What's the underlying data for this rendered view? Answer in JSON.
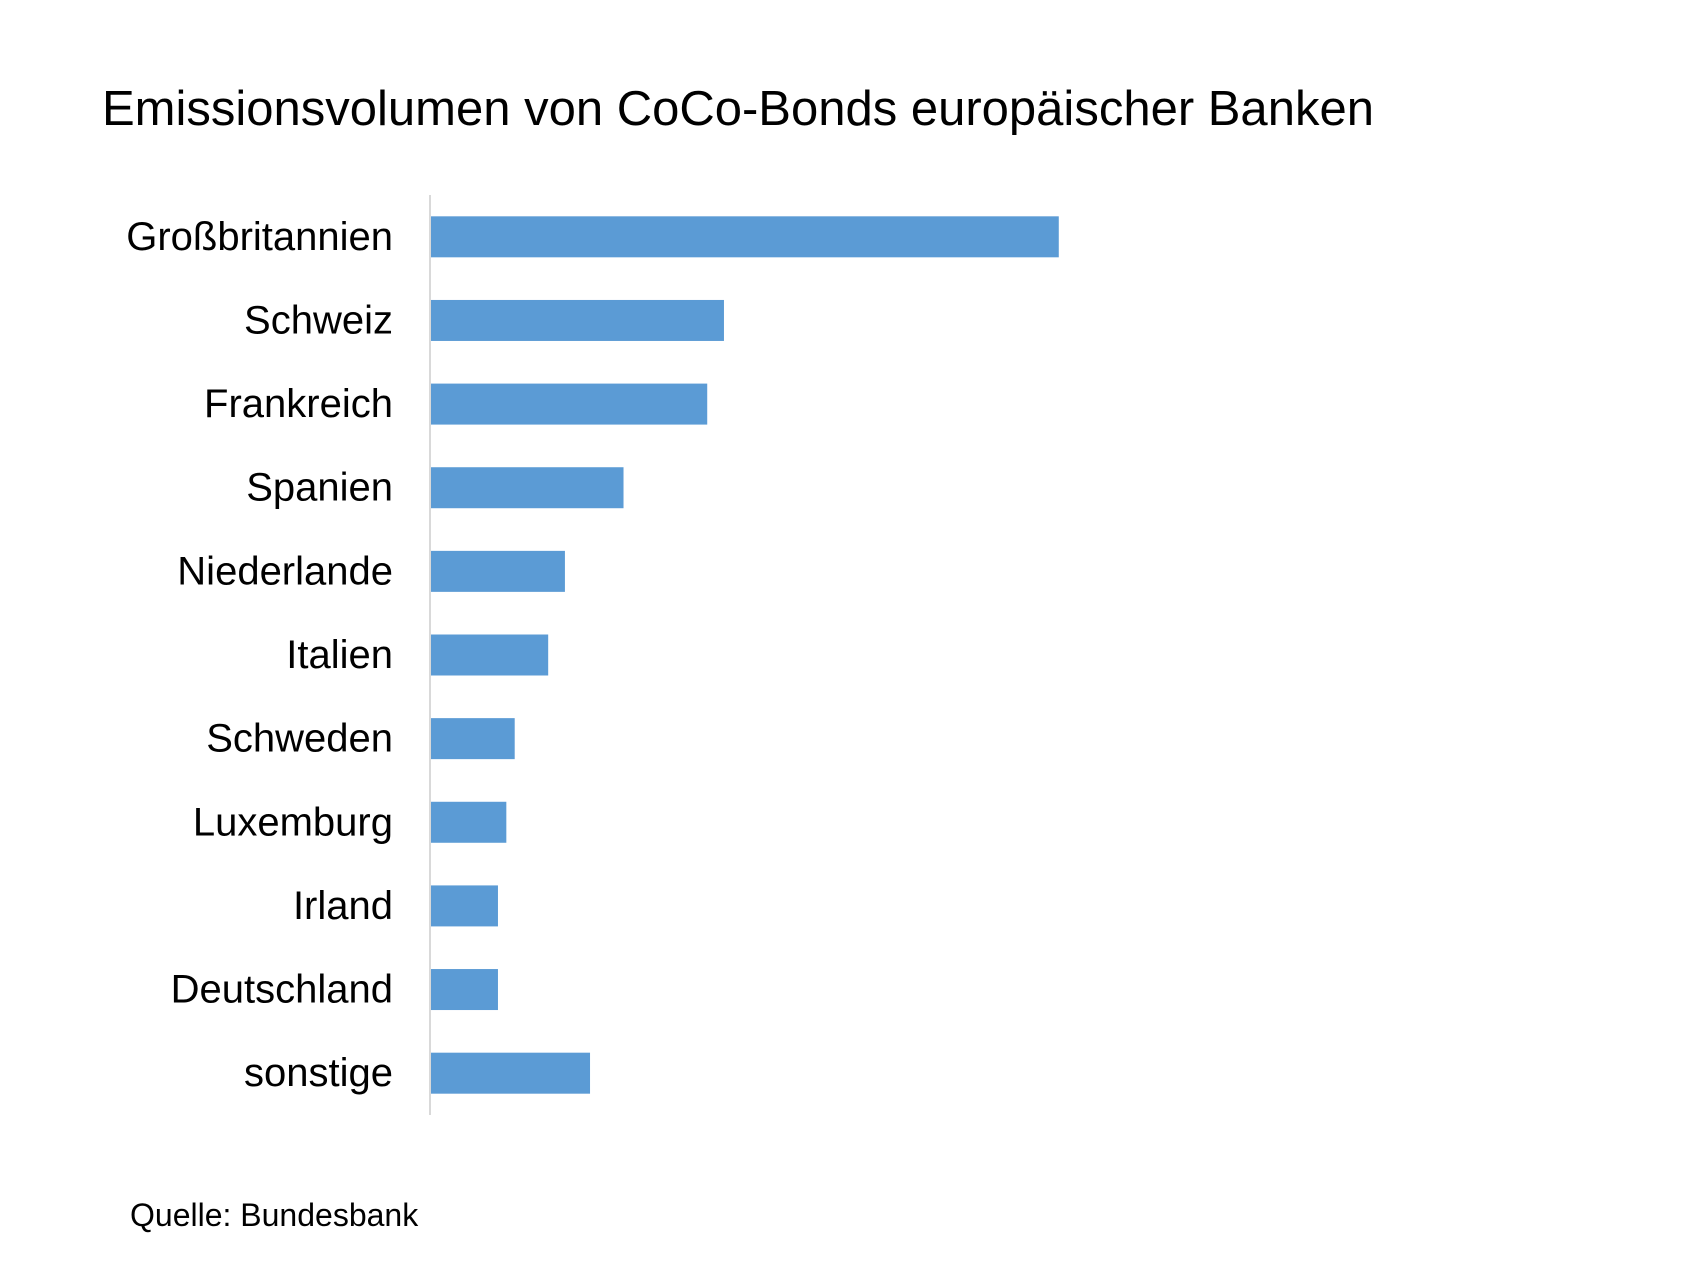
{
  "chart_data": {
    "type": "bar",
    "orientation": "horizontal",
    "title": "Emissionsvolumen von CoCo-Bonds europäischer Banken",
    "categories": [
      "Großbritannien",
      "Schweiz",
      "Frankreich",
      "Spanien",
      "Niederlande",
      "Italien",
      "Schweden",
      "Luxemburg",
      "Irland",
      "Deutschland",
      "sonstige"
    ],
    "values": [
      75,
      35,
      33,
      23,
      16,
      14,
      10,
      9,
      8,
      8,
      19
    ],
    "xlim": [
      0,
      135
    ],
    "xlabel": "",
    "ylabel": "",
    "bar_color": "#5b9bd5",
    "axis_color": "#d9d9d9",
    "grid": false,
    "legend": "none",
    "value_axis_shown": false
  },
  "footer": {
    "source": "Quelle: Bundesbank"
  }
}
